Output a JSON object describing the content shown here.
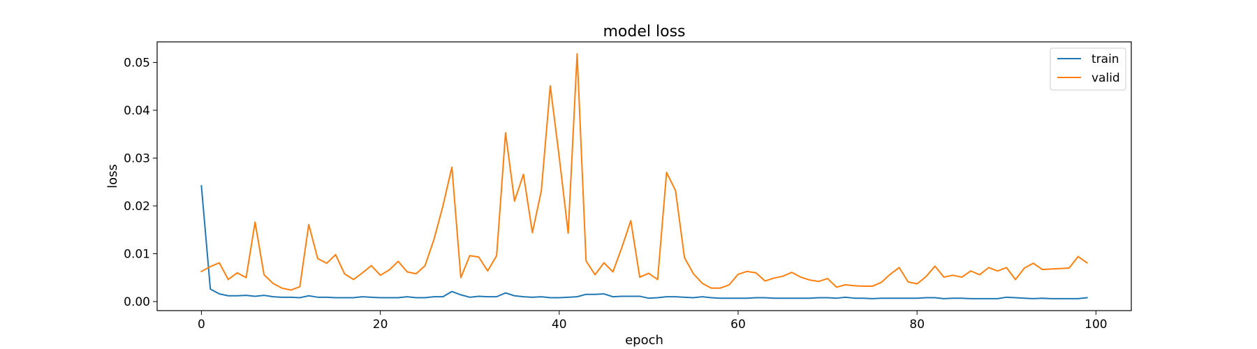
{
  "chart_data": {
    "type": "line",
    "title": "model loss",
    "xlabel": "epoch",
    "ylabel": "loss",
    "xlim": [
      -4.95,
      103.95
    ],
    "ylim": [
      -0.0019,
      0.0543
    ],
    "xticks": [
      0,
      20,
      40,
      60,
      80,
      100
    ],
    "xtick_labels": [
      "0",
      "20",
      "40",
      "60",
      "80",
      "100"
    ],
    "yticks": [
      0.0,
      0.01,
      0.02,
      0.03,
      0.04,
      0.05
    ],
    "ytick_labels": [
      "0.00",
      "0.01",
      "0.02",
      "0.03",
      "0.04",
      "0.05"
    ],
    "grid": false,
    "legend_position": "top-right",
    "series": [
      {
        "name": "train",
        "color": "#1f77b4",
        "values": [
          0.0242,
          0.0026,
          0.0016,
          0.0012,
          0.0012,
          0.0013,
          0.0011,
          0.0013,
          0.001,
          0.0009,
          0.0009,
          0.0008,
          0.0012,
          0.0009,
          0.0009,
          0.0008,
          0.0008,
          0.0008,
          0.001,
          0.0009,
          0.0008,
          0.0008,
          0.0008,
          0.001,
          0.0008,
          0.0008,
          0.001,
          0.001,
          0.0021,
          0.0014,
          0.0009,
          0.0011,
          0.001,
          0.001,
          0.0018,
          0.0012,
          0.001,
          0.0009,
          0.001,
          0.0008,
          0.0008,
          0.0009,
          0.001,
          0.0015,
          0.0015,
          0.0016,
          0.001,
          0.0011,
          0.0011,
          0.0011,
          0.0007,
          0.0008,
          0.001,
          0.001,
          0.0009,
          0.0008,
          0.001,
          0.0008,
          0.0007,
          0.0007,
          0.0007,
          0.0007,
          0.0008,
          0.0008,
          0.0007,
          0.0007,
          0.0007,
          0.0007,
          0.0007,
          0.0008,
          0.0008,
          0.0007,
          0.0009,
          0.0007,
          0.0007,
          0.0006,
          0.0007,
          0.0007,
          0.0007,
          0.0007,
          0.0007,
          0.0008,
          0.0008,
          0.0006,
          0.0007,
          0.0007,
          0.0006,
          0.0006,
          0.0006,
          0.0006,
          0.0009,
          0.0008,
          0.0007,
          0.0006,
          0.0007,
          0.0006,
          0.0006,
          0.0006,
          0.0006,
          0.0008
        ]
      },
      {
        "name": "valid",
        "color": "#ff7f0e",
        "values": [
          0.0063,
          0.0073,
          0.0081,
          0.0046,
          0.006,
          0.005,
          0.0166,
          0.0056,
          0.0038,
          0.0028,
          0.0024,
          0.0031,
          0.0161,
          0.009,
          0.008,
          0.0098,
          0.0058,
          0.0046,
          0.006,
          0.0075,
          0.0055,
          0.0066,
          0.0084,
          0.0062,
          0.0058,
          0.0075,
          0.013,
          0.02,
          0.0281,
          0.005,
          0.0096,
          0.0093,
          0.0064,
          0.0096,
          0.0353,
          0.021,
          0.0266,
          0.0144,
          0.0232,
          0.0451,
          0.0302,
          0.0143,
          0.0518,
          0.0085,
          0.0056,
          0.0081,
          0.0062,
          0.0113,
          0.0169,
          0.0051,
          0.0059,
          0.0046,
          0.027,
          0.0232,
          0.0092,
          0.0058,
          0.0038,
          0.0028,
          0.0028,
          0.0035,
          0.0057,
          0.0063,
          0.006,
          0.0043,
          0.0049,
          0.0053,
          0.0061,
          0.0051,
          0.0045,
          0.0042,
          0.0048,
          0.003,
          0.0035,
          0.0033,
          0.0032,
          0.0032,
          0.004,
          0.0057,
          0.0071,
          0.0041,
          0.0037,
          0.0052,
          0.0074,
          0.0051,
          0.0055,
          0.0051,
          0.0064,
          0.0056,
          0.0071,
          0.0064,
          0.0071,
          0.0046,
          0.007,
          0.008,
          0.0067,
          0.0068,
          0.0069,
          0.007,
          0.0094,
          0.0081
        ]
      }
    ]
  }
}
